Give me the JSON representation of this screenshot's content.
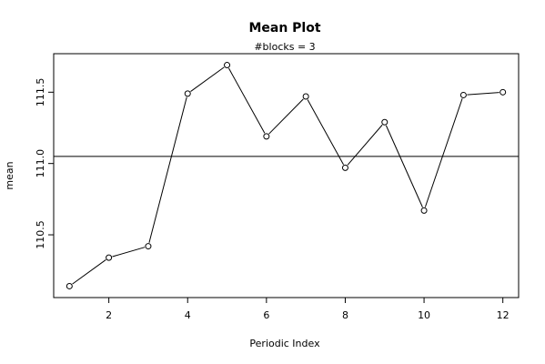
{
  "chart_data": {
    "type": "line",
    "title": "Mean Plot",
    "subtitle": "#blocks =  3",
    "xlabel": "Periodic Index",
    "ylabel": "mean",
    "x": [
      1,
      2,
      3,
      4,
      5,
      6,
      7,
      8,
      9,
      10,
      11,
      12
    ],
    "values": [
      110.14,
      110.34,
      110.42,
      111.49,
      111.69,
      111.19,
      111.47,
      110.97,
      111.29,
      110.67,
      111.48,
      111.5
    ],
    "reference_line": 111.05,
    "xlim": [
      0.6,
      12.4
    ],
    "ylim": [
      110.06,
      111.77
    ],
    "xticks": [
      2,
      4,
      6,
      8,
      10,
      12
    ],
    "yticks": [
      110.5,
      111.0,
      111.5
    ],
    "ytick_labels": [
      "110.5",
      "111.0",
      "111.5"
    ],
    "grid": false,
    "marker": "open-circle"
  }
}
